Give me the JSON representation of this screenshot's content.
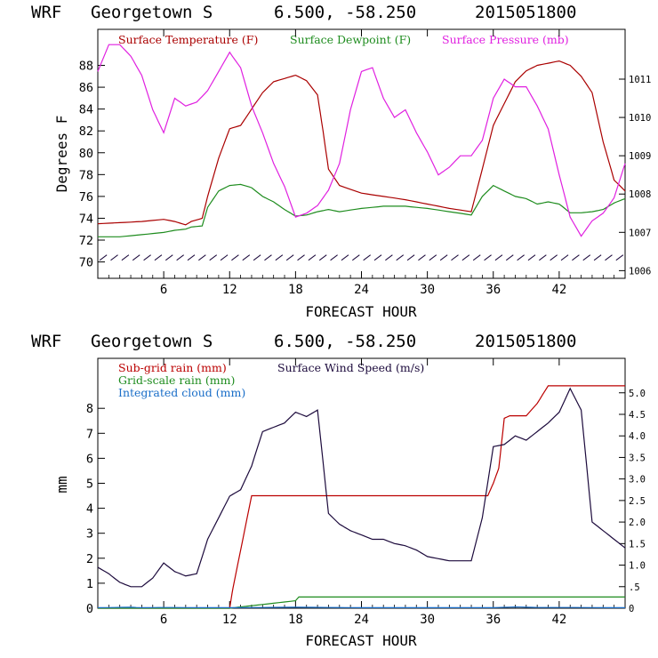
{
  "colors": {
    "temperature": "#aa0000",
    "dewpoint": "#1e8c1e",
    "pressure": "#e020e0",
    "wind": "#1c0a3c",
    "subgrid_rain": "#bb0000",
    "gridscale_rain": "#1e8c1e",
    "cloud": "#1a6ec8"
  },
  "chart_data": [
    {
      "type": "line",
      "header": {
        "model": "WRF",
        "location": "Georgetown S",
        "coords": "6.500, -58.250",
        "init": "2015051800"
      },
      "xlabel": "FORECAST HOUR",
      "ylabel": "Degrees F",
      "xlim": [
        0,
        48
      ],
      "ylim": [
        68.5,
        91.3
      ],
      "y2lim": [
        1005.8,
        1012.3
      ],
      "xticks": [
        "6",
        "12",
        "18",
        "24",
        "30",
        "36",
        "42"
      ],
      "yticks": [
        "70",
        "72",
        "74",
        "76",
        "78",
        "80",
        "82",
        "84",
        "86",
        "88"
      ],
      "y2ticks": [
        "1006",
        "1007",
        "1008",
        "1009",
        "1010",
        "1011"
      ],
      "legend": [
        "Surface Temperature (F)",
        "Surface Dewpoint (F)",
        "Surface Pressure (mb)"
      ],
      "series": [
        {
          "name": "Surface Temperature (F)",
          "x": [
            0,
            2,
            4,
            6,
            7,
            8,
            8.5,
            9.5,
            10,
            11,
            12,
            13,
            14,
            15,
            16,
            17,
            18,
            19,
            20,
            20.5,
            21,
            22,
            24,
            26,
            28,
            30,
            32,
            34,
            35,
            36,
            37,
            38,
            39,
            40,
            41,
            42,
            43,
            44,
            45,
            46,
            47,
            48
          ],
          "y": [
            73.5,
            73.6,
            73.7,
            73.9,
            73.7,
            73.4,
            73.7,
            74.0,
            76.0,
            79.5,
            82.2,
            82.5,
            84.0,
            85.5,
            86.5,
            86.8,
            87.1,
            86.6,
            85.3,
            82.0,
            78.5,
            77.0,
            76.3,
            76.0,
            75.7,
            75.3,
            74.9,
            74.6,
            78.5,
            82.5,
            84.5,
            86.5,
            87.5,
            88.0,
            88.2,
            88.4,
            88.0,
            87.0,
            85.5,
            81.0,
            77.5,
            76.5
          ]
        },
        {
          "name": "Surface Dewpoint (F)",
          "x": [
            0,
            2,
            4,
            6,
            7,
            8,
            8.5,
            9.5,
            10,
            11,
            12,
            13,
            14,
            15,
            16,
            17,
            18,
            19,
            20,
            21,
            22,
            24,
            26,
            28,
            30,
            32,
            34,
            35,
            36,
            37,
            38,
            39,
            40,
            41,
            42,
            43,
            44,
            45,
            46,
            47,
            48
          ],
          "y": [
            72.3,
            72.3,
            72.5,
            72.7,
            72.9,
            73.0,
            73.2,
            73.3,
            75.0,
            76.5,
            77.0,
            77.1,
            76.8,
            76.0,
            75.5,
            74.8,
            74.2,
            74.3,
            74.6,
            74.8,
            74.6,
            74.9,
            75.1,
            75.1,
            74.9,
            74.6,
            74.3,
            76.0,
            77.0,
            76.5,
            76.0,
            75.8,
            75.3,
            75.5,
            75.3,
            74.5,
            74.5,
            74.6,
            74.8,
            75.4,
            75.8
          ]
        },
        {
          "name": "Surface Pressure (mb)",
          "x": [
            0,
            1,
            2,
            3,
            4,
            5,
            6,
            7,
            8,
            9,
            10,
            11,
            12,
            13,
            14,
            15,
            16,
            17,
            18,
            19,
            20,
            21,
            22,
            23,
            24,
            25,
            26,
            27,
            28,
            29,
            30,
            31,
            32,
            33,
            34,
            35,
            36,
            37,
            38,
            39,
            40,
            41,
            42,
            43,
            44,
            45,
            46,
            47,
            48
          ],
          "y": [
            1011.2,
            1011.9,
            1011.9,
            1011.6,
            1011.1,
            1010.2,
            1009.6,
            1010.5,
            1010.3,
            1010.4,
            1010.7,
            1011.2,
            1011.7,
            1011.3,
            1010.3,
            1009.6,
            1008.8,
            1008.2,
            1007.4,
            1007.5,
            1007.7,
            1008.1,
            1008.8,
            1010.2,
            1011.2,
            1011.3,
            1010.5,
            1010.0,
            1010.2,
            1009.6,
            1009.1,
            1008.5,
            1008.7,
            1009.0,
            1009.0,
            1009.4,
            1010.5,
            1011.0,
            1010.8,
            1010.8,
            1010.3,
            1009.7,
            1008.5,
            1007.4,
            1006.9,
            1007.3,
            1007.5,
            1007.9,
            1008.8
          ]
        }
      ]
    },
    {
      "type": "line",
      "header": {
        "model": "WRF",
        "location": "Georgetown S",
        "coords": "6.500, -58.250",
        "init": "2015051800"
      },
      "xlabel": "FORECAST HOUR",
      "ylabel": "mm",
      "xlim": [
        0,
        48
      ],
      "ylim": [
        0,
        10
      ],
      "y2lim": [
        0,
        5.8
      ],
      "xticks": [
        "6",
        "12",
        "18",
        "24",
        "30",
        "36",
        "42"
      ],
      "yticks": [
        "0",
        "1",
        "2",
        "3",
        "4",
        "5",
        "6",
        "7",
        "8"
      ],
      "y2ticks": [
        "0",
        ".5",
        "1.0",
        "1.5",
        "2.0",
        "2.5",
        "3.0",
        "3.5",
        "4.0",
        "4.5",
        "5.0"
      ],
      "legend": [
        "Sub-grid rain (mm)",
        "Surface Wind Speed (m/s)",
        "Grid-scale rain (mm)",
        "Integrated cloud (mm)"
      ],
      "series": [
        {
          "name": "Sub-grid rain (mm)",
          "x": [
            0,
            12,
            12.3,
            14,
            16,
            18,
            20,
            22,
            24,
            30,
            35.5,
            36,
            36.5,
            37,
            37.5,
            38,
            39,
            40,
            41,
            42,
            48
          ],
          "y": [
            0,
            0,
            0.8,
            4.5,
            4.5,
            4.5,
            4.5,
            4.5,
            4.5,
            4.5,
            4.5,
            5.0,
            5.6,
            7.6,
            7.7,
            7.7,
            7.7,
            8.2,
            8.9,
            8.9,
            8.9
          ]
        },
        {
          "name": "Surface Wind Speed (m/s)",
          "x": [
            0,
            1,
            2,
            3,
            4,
            5,
            6,
            7,
            8,
            9,
            10,
            11,
            12,
            13,
            14,
            15,
            16,
            17,
            18,
            19,
            20,
            21,
            22,
            23,
            24,
            25,
            26,
            27,
            28,
            29,
            30,
            31,
            32,
            33,
            34,
            35,
            36,
            37,
            38,
            39,
            40,
            41,
            42,
            43,
            44,
            45,
            46,
            47,
            48
          ],
          "y": [
            0.95,
            0.8,
            0.6,
            0.5,
            0.5,
            0.7,
            1.05,
            0.85,
            0.75,
            0.8,
            1.6,
            2.1,
            2.6,
            2.75,
            3.3,
            4.1,
            4.2,
            4.3,
            4.55,
            4.45,
            4.6,
            2.2,
            1.95,
            1.8,
            1.7,
            1.6,
            1.6,
            1.5,
            1.45,
            1.35,
            1.2,
            1.15,
            1.1,
            1.1,
            1.1,
            2.1,
            3.75,
            3.8,
            4.0,
            3.9,
            4.1,
            4.3,
            4.55,
            5.1,
            4.6,
            2.0,
            1.8,
            1.6,
            1.4
          ]
        },
        {
          "name": "Grid-scale rain (mm)",
          "x": [
            0,
            12,
            13,
            14,
            16,
            18,
            18.3,
            24,
            30,
            36,
            42,
            48
          ],
          "y": [
            0,
            0,
            0.05,
            0.1,
            0.2,
            0.3,
            0.45,
            0.45,
            0.45,
            0.45,
            0.45,
            0.45
          ]
        },
        {
          "name": "Integrated cloud (mm)",
          "x": [
            0,
            3,
            4,
            6,
            10,
            12,
            18,
            24,
            30,
            36,
            38,
            40,
            42,
            48
          ],
          "y": [
            0.02,
            0.04,
            0.02,
            0.03,
            0.02,
            0.02,
            0.04,
            0.02,
            0.02,
            0.02,
            0.05,
            0.03,
            0.03,
            0.02
          ]
        }
      ]
    }
  ]
}
